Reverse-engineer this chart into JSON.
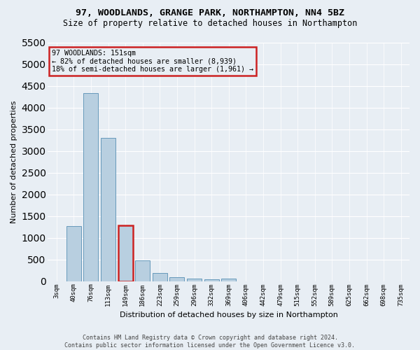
{
  "title1": "97, WOODLANDS, GRANGE PARK, NORTHAMPTON, NN4 5BZ",
  "title2": "Size of property relative to detached houses in Northampton",
  "xlabel": "Distribution of detached houses by size in Northampton",
  "ylabel": "Number of detached properties",
  "footer1": "Contains HM Land Registry data © Crown copyright and database right 2024.",
  "footer2": "Contains public sector information licensed under the Open Government Licence v3.0.",
  "annotation_line1": "97 WOODLANDS: 151sqm",
  "annotation_line2": "← 82% of detached houses are smaller (8,939)",
  "annotation_line3": "18% of semi-detached houses are larger (1,961) →",
  "bar_labels": [
    "3sqm",
    "40sqm",
    "76sqm",
    "113sqm",
    "149sqm",
    "186sqm",
    "223sqm",
    "259sqm",
    "296sqm",
    "332sqm",
    "369sqm",
    "406sqm",
    "442sqm",
    "479sqm",
    "515sqm",
    "552sqm",
    "589sqm",
    "625sqm",
    "662sqm",
    "698sqm",
    "735sqm"
  ],
  "bar_values": [
    0,
    1270,
    4330,
    3300,
    1280,
    480,
    195,
    90,
    60,
    40,
    55,
    0,
    0,
    0,
    0,
    0,
    0,
    0,
    0,
    0,
    0
  ],
  "bar_color": "#b8cfe0",
  "bar_edge_color": "#6699bb",
  "highlight_bar_index": 4,
  "highlight_bar_edge_color": "#cc2222",
  "annotation_box_edge_color": "#cc2222",
  "background_color": "#e8eef4",
  "grid_color": "#ffffff",
  "ylim": [
    0,
    5500
  ],
  "yticks": [
    0,
    500,
    1000,
    1500,
    2000,
    2500,
    3000,
    3500,
    4000,
    4500,
    5000,
    5500
  ]
}
